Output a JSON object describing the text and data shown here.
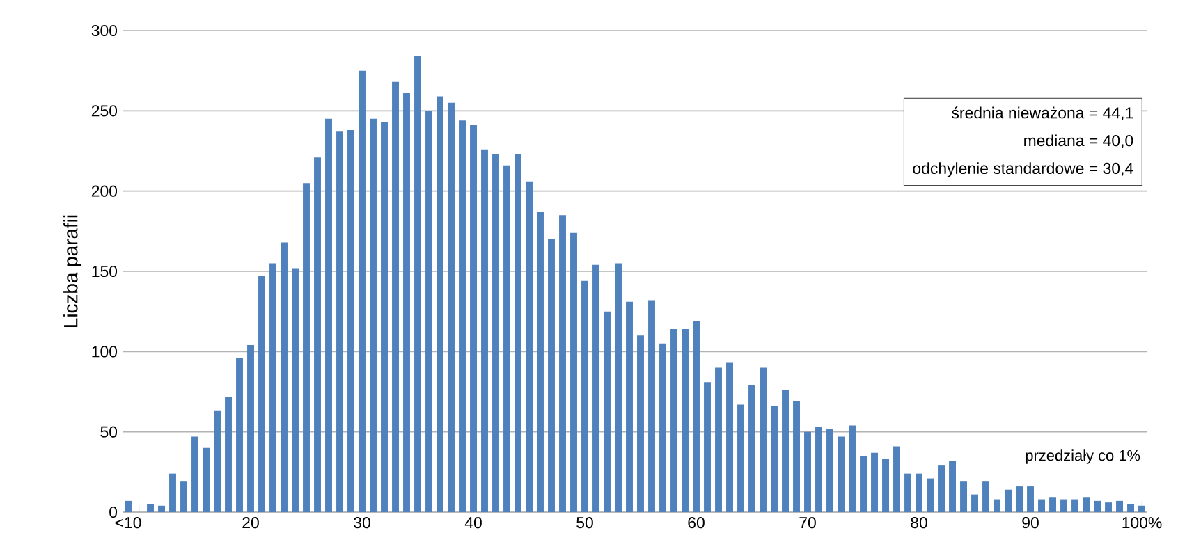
{
  "chart_data": {
    "type": "bar",
    "ylabel": "Liczba parafii",
    "categories": [
      "<10",
      null,
      null,
      null,
      null,
      null,
      null,
      null,
      null,
      null,
      null,
      "20",
      null,
      null,
      null,
      null,
      null,
      null,
      null,
      null,
      null,
      "30",
      null,
      null,
      null,
      null,
      null,
      null,
      null,
      null,
      null,
      "40",
      null,
      null,
      null,
      null,
      null,
      null,
      null,
      null,
      null,
      "50",
      null,
      null,
      null,
      null,
      null,
      null,
      null,
      null,
      null,
      "60",
      null,
      null,
      null,
      null,
      null,
      null,
      null,
      null,
      null,
      "70",
      null,
      null,
      null,
      null,
      null,
      null,
      null,
      null,
      null,
      "80",
      null,
      null,
      null,
      null,
      null,
      null,
      null,
      null,
      null,
      "90",
      null,
      null,
      null,
      null,
      null,
      null,
      null,
      null,
      null,
      "100%"
    ],
    "values": [
      7,
      0,
      5,
      4,
      24,
      19,
      47,
      40,
      63,
      72,
      96,
      104,
      147,
      155,
      168,
      152,
      205,
      221,
      245,
      237,
      238,
      275,
      245,
      243,
      268,
      261,
      284,
      250,
      259,
      255,
      244,
      241,
      226,
      223,
      216,
      223,
      206,
      187,
      170,
      185,
      174,
      144,
      154,
      125,
      155,
      131,
      110,
      132,
      105,
      114,
      114,
      119,
      81,
      90,
      93,
      67,
      79,
      90,
      66,
      76,
      69,
      50,
      53,
      52,
      47,
      54,
      35,
      37,
      33,
      41,
      24,
      24,
      21,
      29,
      32,
      19,
      11,
      19,
      8,
      14,
      16,
      16,
      8,
      9,
      8,
      8,
      9,
      7,
      6,
      7,
      5,
      4
    ],
    "color": "#4f81bd",
    "ylim": [
      0,
      300
    ],
    "yticks": [
      0,
      50,
      100,
      150,
      200,
      250,
      300
    ],
    "grid": "y",
    "annotations": [
      "średnia nieważona = 44,1",
      "mediana = 40,0",
      "odchylenie standardowe = 30,4",
      "przedziały co 1%"
    ]
  }
}
